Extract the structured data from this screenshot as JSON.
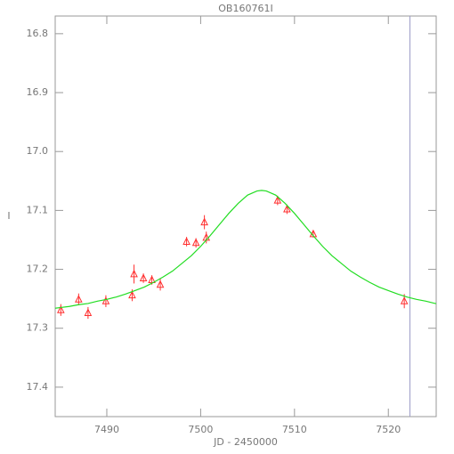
{
  "chart_data": {
    "type": "scatter",
    "title": "OB160761I",
    "xlabel": "JD - 2450000",
    "ylabel": "I",
    "xlim": [
      7484.5,
      7525.1
    ],
    "ylim": [
      17.45,
      16.77
    ],
    "xticks": [
      7490,
      7500,
      7510,
      7520
    ],
    "yticks": [
      16.8,
      16.9,
      {
        "value": 17,
        "label": "17.0"
      },
      17.1,
      17.2,
      17.3,
      17.4
    ],
    "vlines": [
      {
        "x": 7522.3,
        "color": "#9c9cc8"
      }
    ],
    "series": [
      {
        "mode": "points",
        "color": "#ff3030",
        "x": [
          7485.1,
          7487.0,
          7488.0,
          7489.9,
          7492.7,
          7492.9,
          7493.9,
          7494.8,
          7495.7,
          7498.5,
          7499.5,
          7500.4,
          7500.6,
          7508.2,
          7509.2,
          7512.0,
          7521.7
        ],
        "values": [
          17.269,
          17.251,
          17.274,
          17.254,
          17.244,
          17.208,
          17.215,
          17.218,
          17.226,
          17.153,
          17.155,
          17.12,
          17.146,
          17.083,
          17.098,
          17.14,
          17.254
        ],
        "errors": [
          0.01,
          0.01,
          0.01,
          0.01,
          0.01,
          0.016,
          0.008,
          0.008,
          0.01,
          0.008,
          0.008,
          0.012,
          0.01,
          0.008,
          0.008,
          0.006,
          0.012
        ]
      },
      {
        "mode": "line",
        "color": "#22dd22",
        "x": [
          7484.5,
          7485,
          7486,
          7487,
          7488,
          7489,
          7490,
          7491,
          7492,
          7493,
          7494,
          7495,
          7496,
          7497,
          7498,
          7499,
          7500,
          7501,
          7502,
          7503,
          7504,
          7505,
          7506,
          7506.5,
          7507,
          7508,
          7509,
          7510,
          7511,
          7512,
          7513,
          7514,
          7515,
          7516,
          7517,
          7518,
          7519,
          7520,
          7521,
          7522,
          7523,
          7524,
          7525,
          7525.1
        ],
        "values": [
          17.266,
          17.265,
          17.263,
          17.26,
          17.258,
          17.254,
          17.251,
          17.247,
          17.242,
          17.236,
          17.23,
          17.222,
          17.213,
          17.203,
          17.19,
          17.177,
          17.161,
          17.143,
          17.124,
          17.105,
          17.088,
          17.074,
          17.067,
          17.066,
          17.067,
          17.074,
          17.088,
          17.105,
          17.124,
          17.143,
          17.161,
          17.177,
          17.19,
          17.203,
          17.213,
          17.222,
          17.23,
          17.236,
          17.242,
          17.247,
          17.251,
          17.254,
          17.258,
          17.258
        ]
      }
    ]
  }
}
